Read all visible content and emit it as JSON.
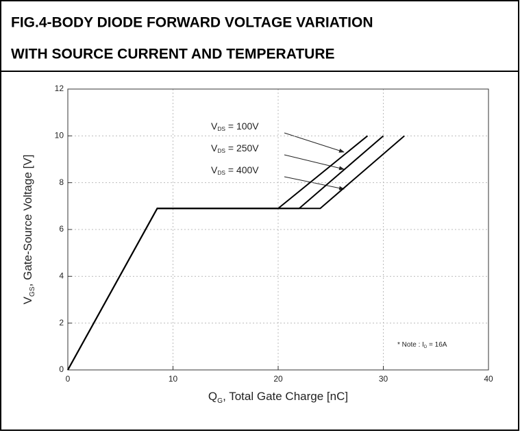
{
  "chart_data": {
    "type": "line",
    "title": [
      "FIG.4-BODY DIODE FORWARD VOLTAGE VARIATION",
      "WITH SOURCE CURRENT AND TEMPERATURE"
    ],
    "x_label": [
      "Q",
      "G",
      ", Total Gate Charge [nC]"
    ],
    "y_label": [
      "V",
      "GS",
      ", Gate-Source Voltage [V]"
    ],
    "series": [
      {
        "name": [
          "V",
          "DS",
          " = 100V"
        ],
        "color": "#000000",
        "x": [
          0,
          8.5,
          20,
          28.5
        ],
        "values": [
          0,
          6.9,
          6.9,
          10
        ]
      },
      {
        "name": [
          "V",
          "DS",
          " = 250V"
        ],
        "color": "#000000",
        "x": [
          0,
          8.5,
          22,
          30
        ],
        "values": [
          0,
          6.9,
          6.9,
          10
        ]
      },
      {
        "name": [
          "V",
          "DS",
          " = 400V"
        ],
        "color": "#000000",
        "x": [
          0,
          8.5,
          24,
          32
        ],
        "values": [
          0,
          6.9,
          6.9,
          10
        ]
      }
    ],
    "annotation": [
      "* Note : I",
      "D",
      " = 16A"
    ],
    "xlim": [
      0,
      40
    ],
    "xticks": [
      0,
      10,
      20,
      30,
      40
    ],
    "ylim": [
      0,
      12
    ],
    "yticks": [
      0,
      2,
      4,
      6,
      8,
      10,
      12
    ],
    "grid": true
  }
}
